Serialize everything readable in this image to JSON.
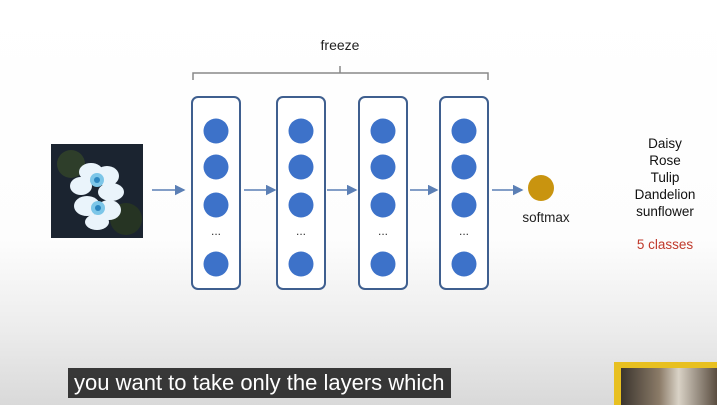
{
  "diagram": {
    "freeze_label": "freeze",
    "layers": [
      {
        "id": "layer-1",
        "ellipsis": "..."
      },
      {
        "id": "layer-2",
        "ellipsis": "..."
      },
      {
        "id": "layer-3",
        "ellipsis": "..."
      },
      {
        "id": "layer-4",
        "ellipsis": "..."
      }
    ],
    "output_label": "softmax",
    "classes": [
      "Daisy",
      "Rose",
      "Tulip",
      "Dandelion",
      "sunflower"
    ],
    "classes_count": "5 classes",
    "colors": {
      "neuron": "#3d72c9",
      "layer_border": "#3f5f8f",
      "arrow": "#5b7fb5",
      "softmax_node": "#c9940f",
      "classes_count": "#c0392b",
      "bracket": "#888888"
    }
  },
  "video": {
    "caption": "you want to take only the layers which"
  }
}
